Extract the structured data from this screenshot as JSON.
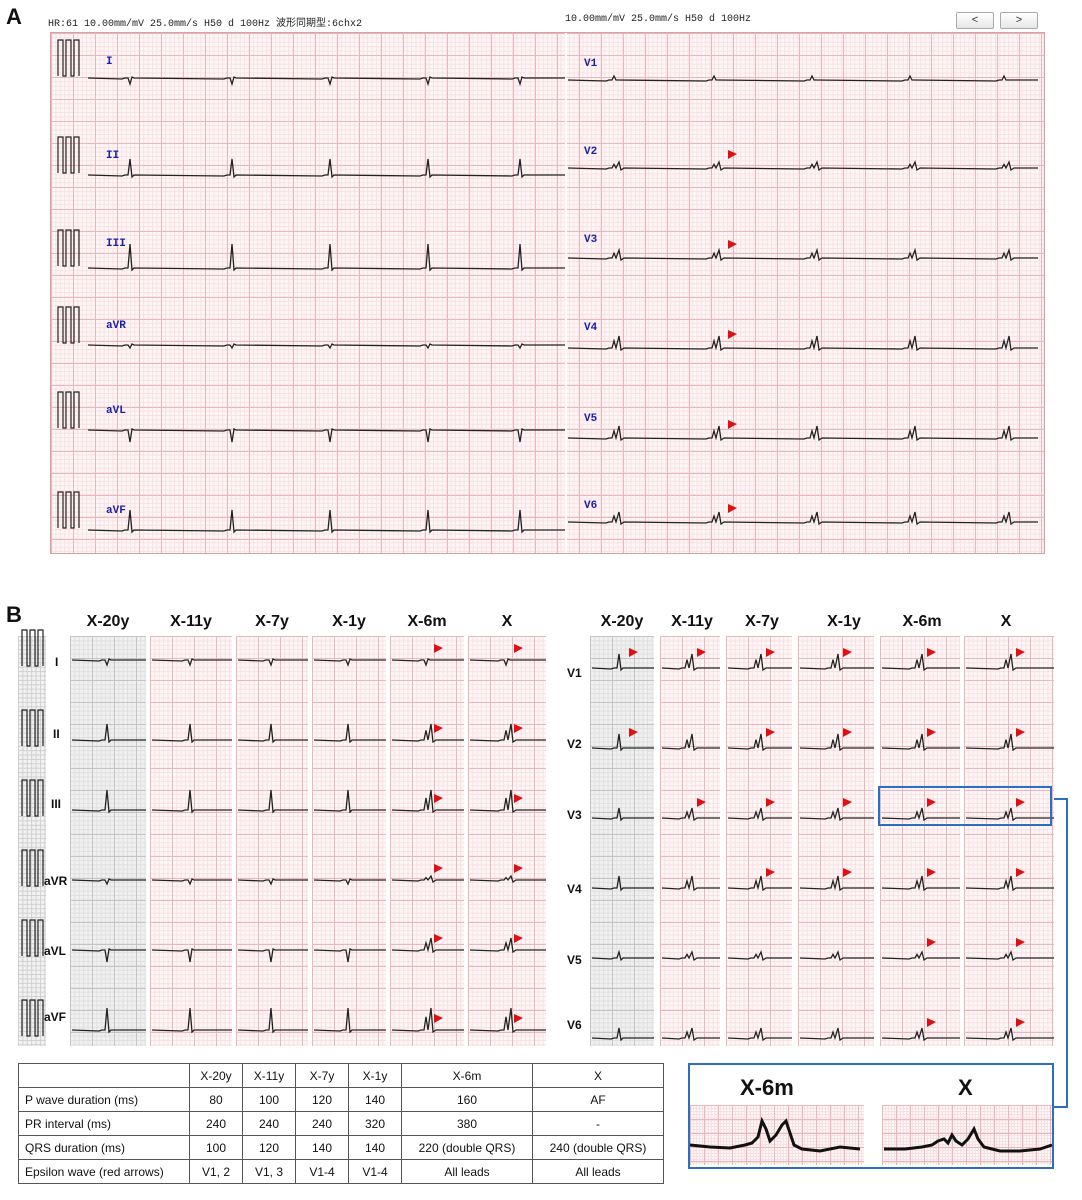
{
  "panel_a": {
    "label": "A",
    "header_left": "HR:61  10.00mm/mV 25.0mm/s H50 d 100Hz 波形同期型:6chx2",
    "header_right": "10.00mm/mV 25.0mm/s H50 d 100Hz",
    "nav_prev": "<",
    "nav_next": ">",
    "limb_leads": [
      "I",
      "II",
      "III",
      "aVR",
      "aVL",
      "aVF"
    ],
    "chest_leads": [
      "V1",
      "V2",
      "V3",
      "V4",
      "V5",
      "V6"
    ]
  },
  "panel_b": {
    "label": "B",
    "columns": [
      "X-20y",
      "X-11y",
      "X-7y",
      "X-1y",
      "X-6m",
      "X"
    ],
    "limb_leads": [
      "I",
      "II",
      "III",
      "aVR",
      "aVL",
      "aVF"
    ],
    "chest_leads": [
      "V1",
      "V2",
      "V3",
      "V4",
      "V5",
      "V6"
    ],
    "zoom_labels": [
      "X-6m",
      "X"
    ]
  },
  "table": {
    "header": [
      "",
      "X-20y",
      "X-11y",
      "X-7y",
      "X-1y",
      "X-6m",
      "X"
    ],
    "rows": [
      [
        "P wave duration (ms)",
        "80",
        "100",
        "120",
        "140",
        "160",
        "AF"
      ],
      [
        "PR interval (ms)",
        "240",
        "240",
        "240",
        "320",
        "380",
        "-"
      ],
      [
        "QRS duration (ms)",
        "100",
        "120",
        "140",
        "140",
        "220 (double QRS)",
        "240 (double QRS)"
      ],
      [
        "Epsilon wave (red arrows)",
        "V1, 2",
        "V1, 3",
        "V1-4",
        "V1-4",
        "All leads",
        "All leads"
      ]
    ]
  },
  "colors": {
    "trace": "#222222",
    "arrow": "#e01010",
    "box": "#2a6fc0",
    "lead_label": "#1b1fa8"
  }
}
